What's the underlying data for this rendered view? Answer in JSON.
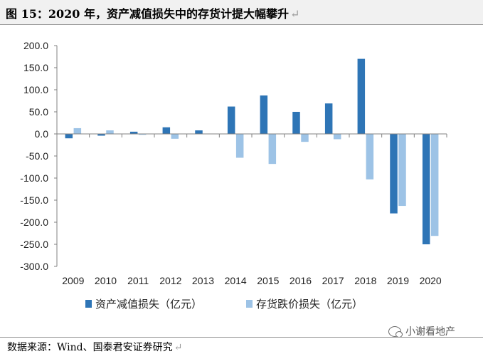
{
  "figure": {
    "title": "图 15：2020 年，资产减值损失中的存货计提大幅攀升",
    "return_mark": "↵",
    "source": "数据来源：Wind、国泰君安证券研究",
    "watermark": "小谢看地产"
  },
  "colors": {
    "series_1": "#2e75b6",
    "series_2": "#9dc3e6",
    "axis": "#808080",
    "text": "#222222"
  },
  "chart_data": {
    "type": "bar",
    "title": "",
    "xlabel": "",
    "ylabel": "",
    "categories": [
      "2009",
      "2010",
      "2011",
      "2012",
      "2013",
      "2014",
      "2015",
      "2016",
      "2017",
      "2018",
      "2019",
      "2020"
    ],
    "series": [
      {
        "name": "资产减值损失（亿元）",
        "values": [
          -10,
          -4,
          5,
          15,
          8,
          62,
          87,
          50,
          69,
          170,
          -180,
          -250
        ]
      },
      {
        "name": "存货跌价损失（亿元）",
        "values": [
          13,
          8,
          -2,
          -11,
          0,
          -54,
          -68,
          -18,
          -12,
          -103,
          -163,
          -231
        ]
      }
    ],
    "ylim": [
      -300,
      200
    ],
    "yticks": [
      "200.0",
      "150.0",
      "100.0",
      "50.0",
      "0.0",
      "-50.0",
      "-100.0",
      "-150.0",
      "-200.0",
      "-250.0",
      "-300.0"
    ],
    "grid": false,
    "legend": "bottom"
  }
}
